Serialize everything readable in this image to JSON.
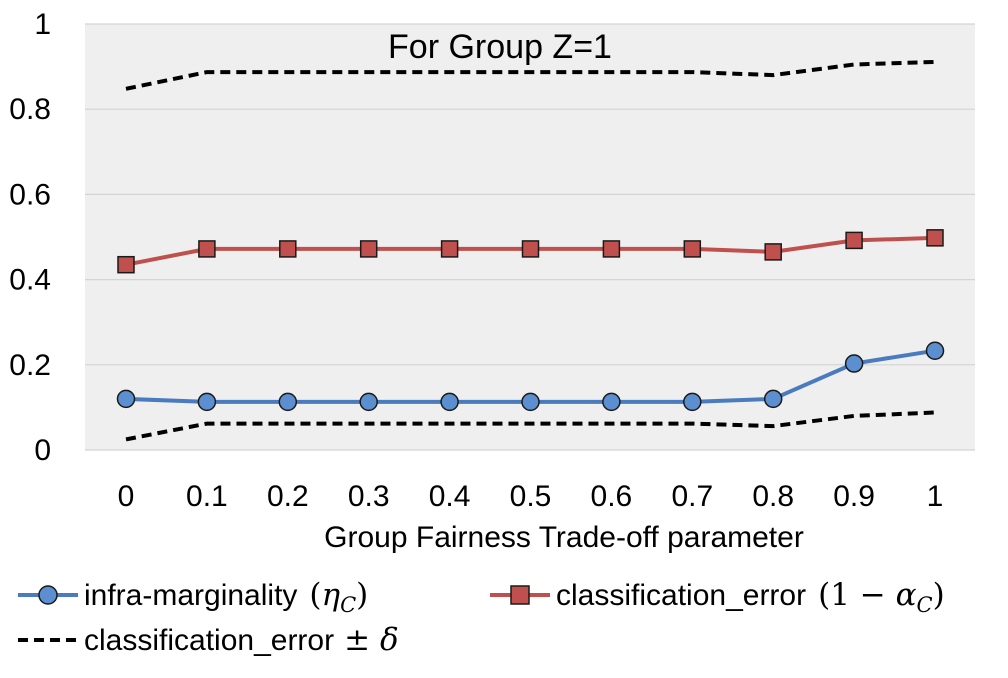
{
  "chart_data": {
    "type": "line",
    "title": "For Group Z=1",
    "xlabel": "Group Fairness Trade-off parameter",
    "ylabel": "",
    "categories": [
      "0",
      "0.1",
      "0.2",
      "0.3",
      "0.4",
      "0.5",
      "0.6",
      "0.7",
      "0.8",
      "0.9",
      "1"
    ],
    "ylim": [
      0,
      1
    ],
    "yticks": [
      "0",
      "0.2",
      "0.4",
      "0.6",
      "0.8",
      "1"
    ],
    "grid": true,
    "legend_position": "bottom",
    "series": [
      {
        "name": "infra-marginality",
        "math": "(η_C)",
        "marker": "circle",
        "color": "#4a7bbf",
        "marker_fill": "#5b8fd0",
        "values": [
          0.12,
          0.113,
          0.113,
          0.113,
          0.113,
          0.113,
          0.113,
          0.113,
          0.12,
          0.203,
          0.233
        ]
      },
      {
        "name": "classification_error",
        "math": "(1 − α_C)",
        "marker": "square",
        "color": "#c0504d",
        "marker_fill": "#c0504d",
        "values": [
          0.435,
          0.472,
          0.472,
          0.472,
          0.472,
          0.472,
          0.472,
          0.472,
          0.465,
          0.492,
          0.498
        ]
      },
      {
        "name": "classification_error",
        "math": "± δ",
        "marker": "none",
        "dashed": true,
        "color": "#000000",
        "values_upper": [
          0.848,
          0.887,
          0.887,
          0.887,
          0.887,
          0.887,
          0.887,
          0.887,
          0.88,
          0.905,
          0.911
        ],
        "values_lower": [
          0.025,
          0.062,
          0.062,
          0.062,
          0.062,
          0.062,
          0.062,
          0.062,
          0.056,
          0.08,
          0.088
        ]
      }
    ]
  },
  "colors": {
    "plot_background": "#efefef",
    "gridline": "#d4d4d4"
  }
}
